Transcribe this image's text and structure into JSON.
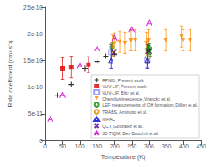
{
  "chart_data": {
    "type": "scatter",
    "xlabel": "Temperature (K)",
    "ylabel": "Rate coefficient (cm³ s⁻¹)",
    "xlim": [
      0,
      450
    ],
    "ylim": [
      0,
      2.5e-10
    ],
    "xticks": [
      0,
      50,
      100,
      150,
      200,
      250,
      300,
      350,
      400,
      450
    ],
    "yticks": [
      0,
      {
        "value": 5e-11,
        "label": "5e-11"
      },
      {
        "value": 1e-10,
        "label": "1e-10"
      },
      {
        "value": 1.5e-10,
        "label": "1.5e-10"
      },
      {
        "value": 2e-10,
        "label": "2e-10"
      },
      {
        "value": 2.5e-10,
        "label": "2.5e-10"
      }
    ],
    "grid": false,
    "legend": "lower right",
    "series": [
      {
        "name": "RPMD, Present work",
        "color": "black",
        "marker": "plus",
        "x": [
          35,
          75,
          115,
          150,
          175,
          200
        ],
        "values": [
          8.5e-11,
          1.05e-10,
          1.35e-10,
          1.48e-10,
          1.58e-10,
          1.62e-10
        ]
      },
      {
        "name": "VUV-LIF, Present work",
        "color": "#dd0000",
        "marker": "square",
        "x": [
          50,
          75,
          125
        ],
        "values": [
          1.35e-10,
          1.38e-10,
          1.42e-10
        ],
        "yerr_lo": [
          2e-11,
          2e-11,
          1.5e-11
        ],
        "yerr_hi": [
          2e-11,
          2e-11,
          1.5e-11
        ]
      },
      {
        "name": "VUV-LIF, Blitz et al.",
        "color": "#8888ff",
        "marker": "open_square",
        "x": [
          190,
          295
        ],
        "values": [
          1.65e-10,
          1.52e-10
        ],
        "yerr_lo": [
          1.5e-11,
          1.5e-11
        ],
        "yerr_hi": [
          1.5e-11,
          1.5e-11
        ]
      },
      {
        "name": "Chemiluminescence, Vranckx et al.",
        "color": "#ff8800",
        "marker": "triangle_down",
        "x": [
          193,
          200,
          215,
          230,
          248,
          260,
          293,
          298,
          348,
          393,
          398,
          418
        ],
        "values": [
          1.78e-10,
          1.82e-10,
          1.85e-10,
          1.83e-10,
          1.88e-10,
          1.88e-10,
          1.83e-10,
          1.88e-10,
          1.88e-10,
          1.95e-10,
          1.88e-10,
          1.88e-10
        ],
        "yerr": [
          2e-11,
          2e-11,
          2e-11,
          2e-11,
          2e-11,
          2e-11,
          2e-11,
          2e-11,
          2e-11,
          2e-11,
          2e-11,
          2e-11
        ]
      },
      {
        "name": "LEF measurements of OH formation, Dillon et al.",
        "color": "#008800",
        "marker": "open_circle",
        "x": [
          193,
          298,
          300,
          302
        ],
        "values": [
          1.75e-10,
          1.7e-10,
          1.73e-10,
          1.66e-10
        ],
        "yerr": [
          8e-12,
          8e-12,
          8e-12,
          8e-12
        ]
      },
      {
        "name": "TRABS, Amimoto et al.",
        "color": "#dd8800",
        "marker": "open_circle",
        "x": [
          296
        ],
        "values": [
          1.56e-10
        ],
        "yerr": [
          1e-11
        ]
      },
      {
        "name": "IUPAC",
        "color": "#0000cc",
        "marker": "open_triangle",
        "x": [
          190,
          295
        ],
        "values": [
          1.5e-10,
          1.5e-10
        ],
        "yerr_lo": [
          1.5e-11,
          1.5e-11
        ],
        "yerr_hi": [
          3e-11,
          3e-11
        ]
      },
      {
        "name": "QCT, Gonzalez et al.",
        "color": "#440088",
        "marker": "cross",
        "x": [
          198,
          298
        ],
        "values": [
          1.65e-10,
          1.68e-10
        ]
      },
      {
        "name": "3D TIQM, Ben Bouchrit et al.",
        "color": "#cc00cc",
        "marker": "letter_A",
        "x": [
          15,
          50,
          100,
          150,
          200,
          250,
          300
        ],
        "values": [
          4e-11,
          8.5e-11,
          1.4e-10,
          1.72e-10,
          1.92e-10,
          2.08e-10,
          2.2e-10
        ]
      }
    ]
  }
}
